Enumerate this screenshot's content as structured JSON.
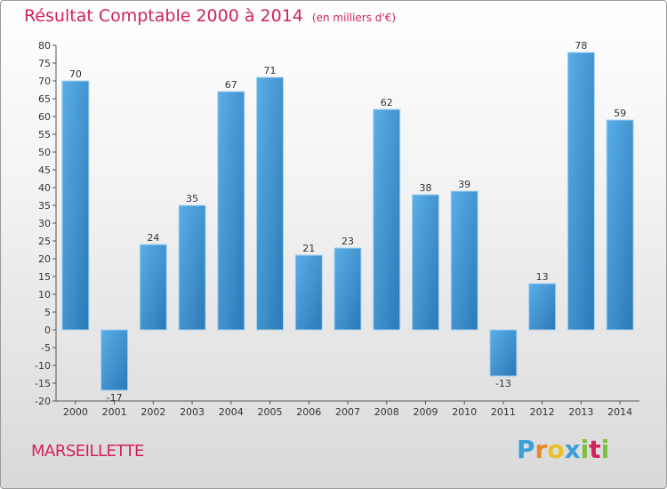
{
  "header": {
    "title": "Résultat Comptable 2000 à 2014",
    "subtitle": "(en milliers d'€)"
  },
  "footer": {
    "city": "MARSEILLETTE",
    "logo": {
      "letters": [
        "P",
        "r",
        "o",
        "x",
        "i",
        "t",
        "i"
      ],
      "colors": [
        "#3aa0d8",
        "#e8892b",
        "#e8c12b",
        "#3aa0d8",
        "#7cbf3a",
        "#d2215b",
        "#7cbf3a"
      ]
    }
  },
  "colors": {
    "title": "#d2215b",
    "bar_light": "#5aaee6",
    "bar_dark": "#2b79b8"
  },
  "chart_data": {
    "type": "bar",
    "title": "Résultat Comptable 2000 à 2014",
    "xlabel": "",
    "ylabel": "",
    "categories": [
      "2000",
      "2001",
      "2002",
      "2003",
      "2004",
      "2005",
      "2006",
      "2007",
      "2008",
      "2009",
      "2010",
      "2011",
      "2012",
      "2013",
      "2014"
    ],
    "values": [
      70,
      -17,
      24,
      35,
      67,
      71,
      21,
      23,
      62,
      38,
      39,
      -13,
      13,
      78,
      59
    ],
    "ylim": [
      -20,
      80
    ],
    "ytick_step": 5,
    "grid": false
  }
}
